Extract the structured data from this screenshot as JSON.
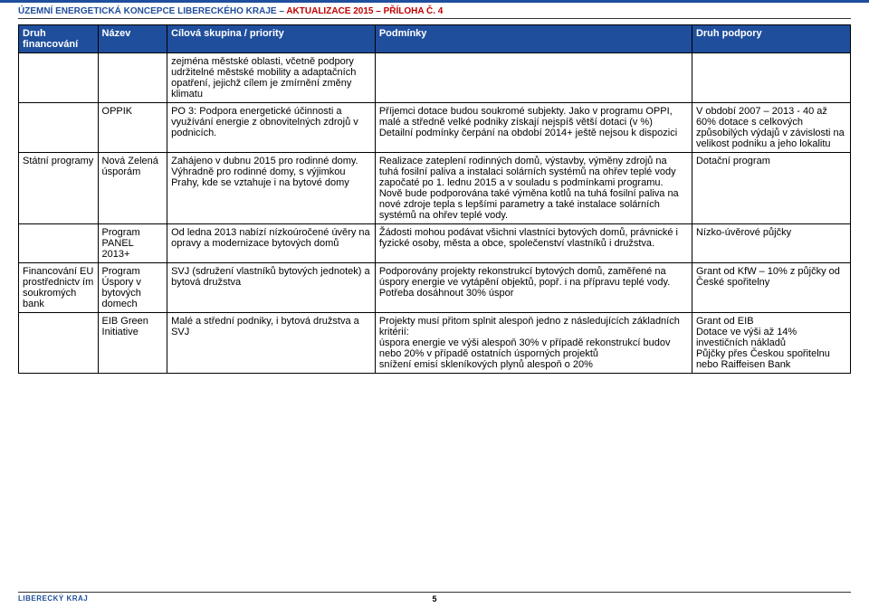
{
  "header": {
    "left": "ÚZEMNÍ ENERGETICKÁ KONCEPCE LIBERECKÉHO KRAJE – ",
    "right": "AKTUALIZACE 2015 – PŘÍLOHA Č. 4"
  },
  "table": {
    "columns": [
      "Druh financování",
      "Název",
      "Cílová skupina / priority",
      "Podmínky",
      "Druh podpory"
    ],
    "rows": [
      {
        "c1": "",
        "c2": "",
        "c3": "zejména městské oblasti, včetně podpory udržitelné městské mobility a adaptačních opatření, jejichž cílem je zmírnění změny klimatu",
        "c4": "",
        "c5": ""
      },
      {
        "c1": "",
        "c2": "OPPIK",
        "c3": "PO 3:  Podpora energetické účinnosti a využívání energie z obnovitelných zdrojů v podnicích.",
        "c4": "Příjemci dotace budou soukromé subjekty. Jako v programu OPPI, malé a středně velké podniky získají nejspíš větší dotaci (v %)\nDetailní podmínky čerpání na období 2014+ ještě nejsou k dispozici",
        "c5": "V období 2007 – 2013 - 40 až 60% dotace s celkových způsobilých výdajů v závislosti na velikost podniku a jeho lokalitu"
      },
      {
        "c1": "Státní programy",
        "c2": "Nová Zelená úsporám",
        "c3": "Zahájeno v dubnu  2015 pro rodinné domy. Výhradně pro rodinné domy, s výjimkou Prahy, kde se vztahuje i na bytové domy",
        "c4": "Realizace zateplení rodinných domů, výstavby, výměny zdrojů na tuhá fosilní paliva a instalaci solárních systémů na ohřev teplé vody započaté po 1. lednu 2015 a v souladu s podmínkami programu.\nNově bude podporována také výměna kotlů na tuhá fosilní paliva na nové zdroje tepla s lepšími parametry a také instalace solárních systémů na ohřev teplé vody.",
        "c5": "Dotační program"
      },
      {
        "c1": "",
        "c2": "Program PANEL 2013+",
        "c3": "Od ledna 2013 nabízí nízkoúročené úvěry na opravy a modernizace bytových domů",
        "c4": "Žádosti mohou podávat všichni vlastníci bytových domů, právnické i fyzické osoby, města a obce, společenství vlastníků i družstva.",
        "c5": "Nízko-úvěrové půjčky"
      },
      {
        "c1": "Financování EU prostřednictv ím soukromých bank",
        "c2": "Program Úspory v bytových domech",
        "c3": "SVJ (sdružení vlastníků bytových jednotek) a bytová družstva",
        "c4": "Podporovány projekty rekonstrukcí bytových domů, zaměřené na úspory energie ve vytápění objektů, popř. i na přípravu teplé vody.\nPotřeba dosáhnout 30% úspor",
        "c5": "Grant od KfW – 10% z půjčky od České spořitelny"
      },
      {
        "c1": "",
        "c2": "EIB Green Initiative",
        "c3": "Malé a střední podniky, i bytová družstva a SVJ",
        "c4": "Projekty musí přitom splnit alespoň jedno z následujících základních kritérií:\núspora energie ve výši alespoň 30% v případě rekonstrukcí budov nebo 20% v případě ostatních úsporných projektů\nsnížení emisí skleníkových plynů alespoň o 20%",
        "c5": "Grant od EIB\nDotace ve výši až 14% investičních nákladů\nPůjčky přes Českou spořitelnu nebo Raiffeisen Bank"
      }
    ]
  },
  "footer": {
    "region": "LIBERECKÝ KRAJ",
    "page": "5"
  },
  "colors": {
    "header_blue": "#1f4e9c",
    "header_red": "#c00000",
    "table_header_bg": "#1f4e9c",
    "table_header_fg": "#ffffff",
    "border": "#000000",
    "background": "#ffffff"
  }
}
